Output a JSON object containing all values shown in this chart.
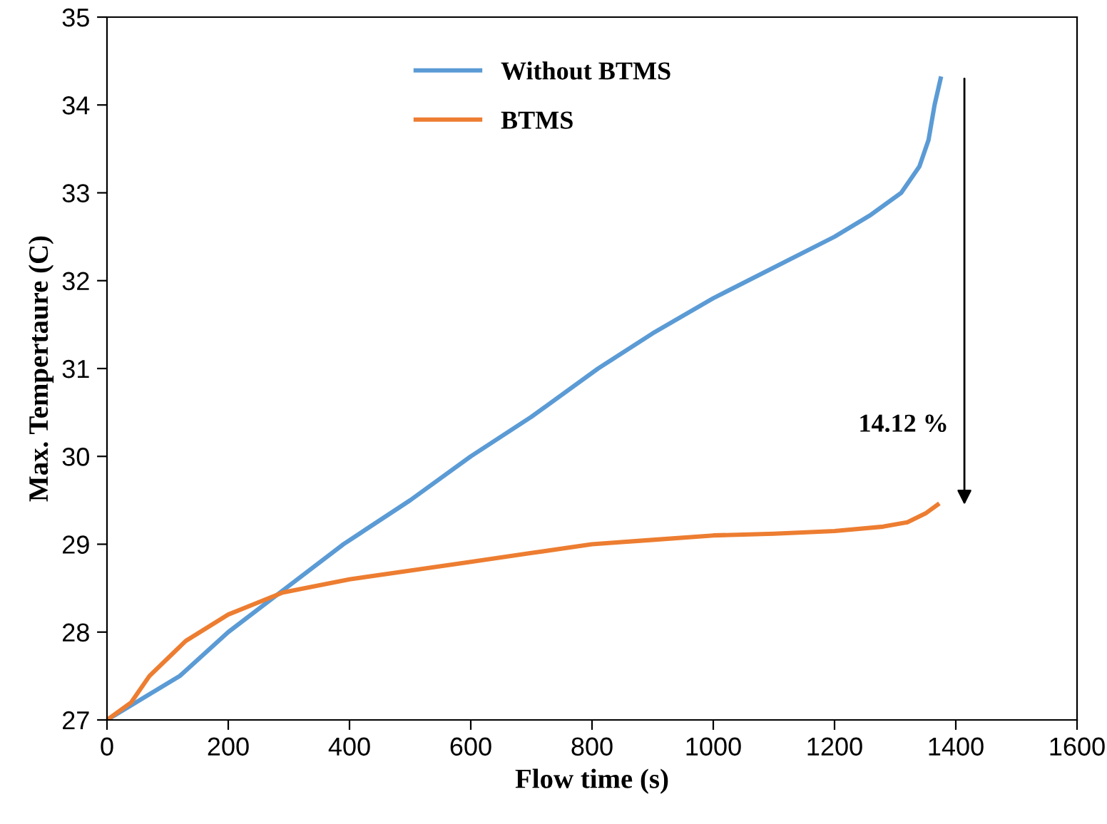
{
  "chart_data": {
    "type": "line",
    "xlabel": "Flow time (s)",
    "ylabel": "Max. Tempertaure (C)",
    "xlim": [
      0,
      1600
    ],
    "xticks": [
      0,
      200,
      400,
      600,
      800,
      1000,
      1200,
      1400,
      1600
    ],
    "ylim": [
      27,
      35
    ],
    "yticks": [
      27,
      28,
      29,
      30,
      31,
      32,
      33,
      34,
      35
    ],
    "grid": false,
    "legend": "top",
    "marker": "none",
    "line_style": "solid",
    "series": [
      {
        "name": "Without BTMS",
        "color": "#5b9bd5",
        "x": [
          0,
          60,
          120,
          200,
          295,
          390,
          500,
          600,
          700,
          810,
          900,
          1000,
          1100,
          1200,
          1260,
          1310,
          1340,
          1355,
          1365,
          1375
        ],
        "values": [
          27,
          27.25,
          27.5,
          28,
          28.5,
          29,
          29.5,
          30,
          30.45,
          31,
          31.4,
          31.8,
          32.15,
          32.5,
          32.75,
          33,
          33.3,
          33.6,
          34.0,
          34.3
        ]
      },
      {
        "name": "BTMS",
        "color": "#ed7d31",
        "x": [
          0,
          40,
          70,
          100,
          130,
          200,
          290,
          400,
          500,
          600,
          700,
          800,
          900,
          1000,
          1100,
          1200,
          1280,
          1320,
          1350,
          1370
        ],
        "values": [
          27,
          27.2,
          27.5,
          27.7,
          27.9,
          28.2,
          28.45,
          28.6,
          28.7,
          28.8,
          28.9,
          29.0,
          29.05,
          29.1,
          29.12,
          29.15,
          29.2,
          29.25,
          29.35,
          29.45
        ]
      }
    ],
    "annotations": [
      "14.12 %"
    ]
  }
}
